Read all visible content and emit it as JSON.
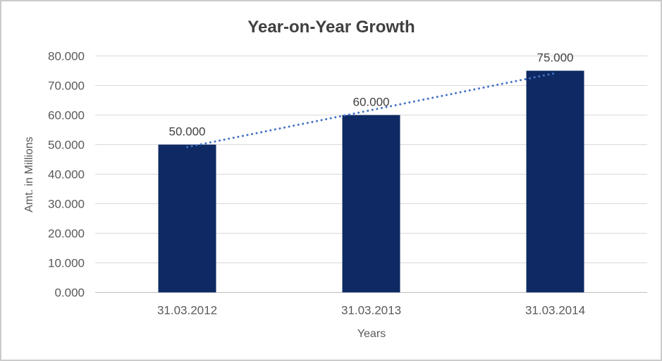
{
  "frame": {
    "background": "#ffffff",
    "border_color": "#cbcbcb"
  },
  "chart_data": {
    "type": "bar",
    "title": "Year-on-Year Growth",
    "xlabel": "Years",
    "ylabel": "Amt. in Millions",
    "categories": [
      "31.03.2012",
      "31.03.2013",
      "31.03.2014"
    ],
    "values": [
      50,
      60,
      75
    ],
    "data_labels": [
      "50.000",
      "60.000",
      "75.000"
    ],
    "ylim": [
      0,
      80
    ],
    "ytick_step": 10,
    "ytick_labels": [
      "0.000",
      "10.000",
      "20.000",
      "30.000",
      "40.000",
      "50.000",
      "60.000",
      "70.000",
      "80.000"
    ],
    "grid": true,
    "legend": "none",
    "trendline": {
      "type": "linear",
      "style": "round-dot",
      "fit_values": [
        49.167,
        61.667,
        74.167
      ]
    },
    "colors": {
      "bar": "#0E2963",
      "trendline": "#4472C4",
      "gridline": "#D9D9D9",
      "axis_line": "#BFBFBF",
      "tick_text": "#595959",
      "axis_title_text": "#595959",
      "title_text": "#404040",
      "data_label_text": "#404040"
    }
  }
}
